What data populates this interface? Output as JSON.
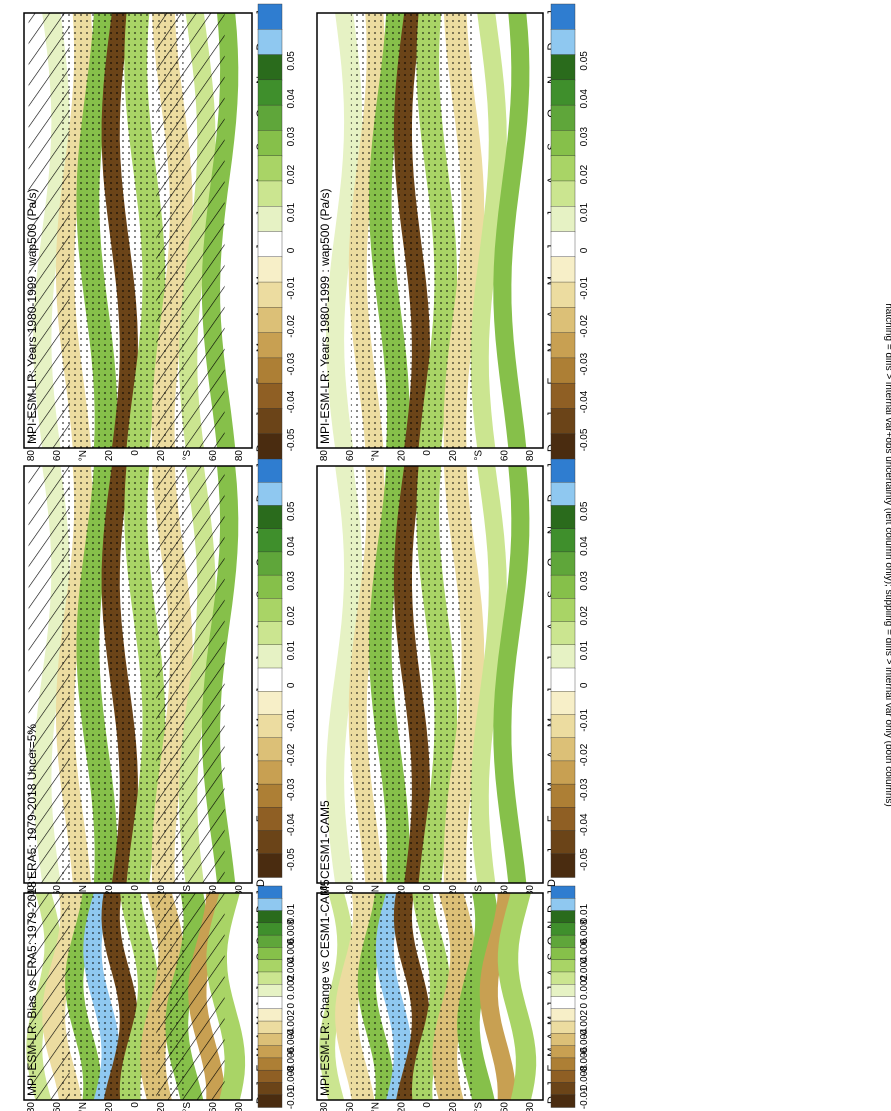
{
  "figure": {
    "footer": "hatching = diffs > internal var+obs uncertainty (left column only); stippling = diffs > internal var only (both columns)"
  },
  "chart_data": [
    {
      "type": "heatmap",
      "title": "MPI-ESM-LR: Years 1980-1999 : wap500 (Pa/s)",
      "months": [
        "D",
        "J",
        "F",
        "M",
        "A",
        "M",
        "J",
        "J",
        "A",
        "S",
        "O",
        "N",
        "D",
        "J"
      ],
      "lat_ticks": [
        "80",
        "60",
        "°N",
        "20",
        "0",
        "20",
        "°S",
        "60",
        "80"
      ],
      "colorbar": [
        "0.05",
        "0.04",
        "0.03",
        "0.02",
        "0.01",
        "0",
        "-0.01",
        "-0.02",
        "-0.03",
        "-0.04",
        "-0.05"
      ],
      "hatched": true,
      "stippled": true
    },
    {
      "type": "heatmap",
      "title": "MPI-ESM-LR: Years 1980-1999 : wap500 (Pa/s)",
      "months": [
        "D",
        "J",
        "F",
        "M",
        "A",
        "M",
        "J",
        "J",
        "A",
        "S",
        "O",
        "N",
        "D",
        "J"
      ],
      "lat_ticks": [
        "80",
        "60",
        "°N",
        "20",
        "0",
        "20",
        "°S",
        "60",
        "80"
      ],
      "colorbar": [
        "0.05",
        "0.04",
        "0.03",
        "0.02",
        "0.01",
        "0",
        "-0.01",
        "-0.02",
        "-0.03",
        "-0.04",
        "-0.05"
      ],
      "hatched": false,
      "stippled": true
    },
    {
      "type": "heatmap",
      "title": "ERA5: 1979-2018 Uncer=5%",
      "months": [
        "D",
        "J",
        "F",
        "M",
        "A",
        "M",
        "J",
        "J",
        "A",
        "S",
        "O",
        "N",
        "D",
        "J"
      ],
      "lat_ticks": [
        "80",
        "60",
        "°N",
        "20",
        "0",
        "20",
        "°S",
        "60",
        "80"
      ],
      "colorbar": [
        "0.05",
        "0.04",
        "0.03",
        "0.02",
        "0.01",
        "0",
        "-0.01",
        "-0.02",
        "-0.03",
        "-0.04",
        "-0.05"
      ],
      "hatched": true,
      "stippled": true
    },
    {
      "type": "heatmap",
      "title": "CESM1-CAM5",
      "months": [
        "D",
        "J",
        "F",
        "M",
        "A",
        "M",
        "J",
        "J",
        "A",
        "S",
        "O",
        "N",
        "D",
        "J"
      ],
      "lat_ticks": [
        "80",
        "60",
        "°N",
        "20",
        "0",
        "20",
        "°S",
        "60",
        "80"
      ],
      "colorbar": [
        "0.05",
        "0.04",
        "0.03",
        "0.02",
        "0.01",
        "0",
        "-0.01",
        "-0.02",
        "-0.03",
        "-0.04",
        "-0.05"
      ],
      "hatched": false,
      "stippled": true
    },
    {
      "type": "heatmap",
      "title": "MPI-ESM-LR: Bias vs ERA5: 1979-2018",
      "months": [
        "D",
        "J",
        "F",
        "M",
        "A",
        "M",
        "J",
        "J",
        "A",
        "S",
        "O",
        "N",
        "D",
        "J"
      ],
      "lat_ticks": [
        "80",
        "60",
        "°N",
        "20",
        "0",
        "20",
        "°S",
        "60",
        "80"
      ],
      "colorbar": [
        "0.01",
        "0.008",
        "0.006",
        "0.004",
        "0.002",
        "0",
        "-0.002",
        "-0.004",
        "-0.006",
        "-0.008",
        "-0.01"
      ],
      "hatched": true,
      "stippled": true
    },
    {
      "type": "heatmap",
      "title": "MPI-ESM-LR: Change vs CESM1-CAM5",
      "months": [
        "D",
        "J",
        "F",
        "M",
        "A",
        "M",
        "J",
        "J",
        "A",
        "S",
        "O",
        "N",
        "D",
        "J"
      ],
      "lat_ticks": [
        "80",
        "60",
        "°N",
        "20",
        "0",
        "20",
        "°S",
        "60",
        "80"
      ],
      "colorbar": [
        "0.01",
        "0.008",
        "0.006",
        "0.004",
        "0.002",
        "0",
        "-0.002",
        "-0.004",
        "-0.006",
        "-0.008",
        "-0.01"
      ],
      "hatched": false,
      "stippled": true
    }
  ]
}
